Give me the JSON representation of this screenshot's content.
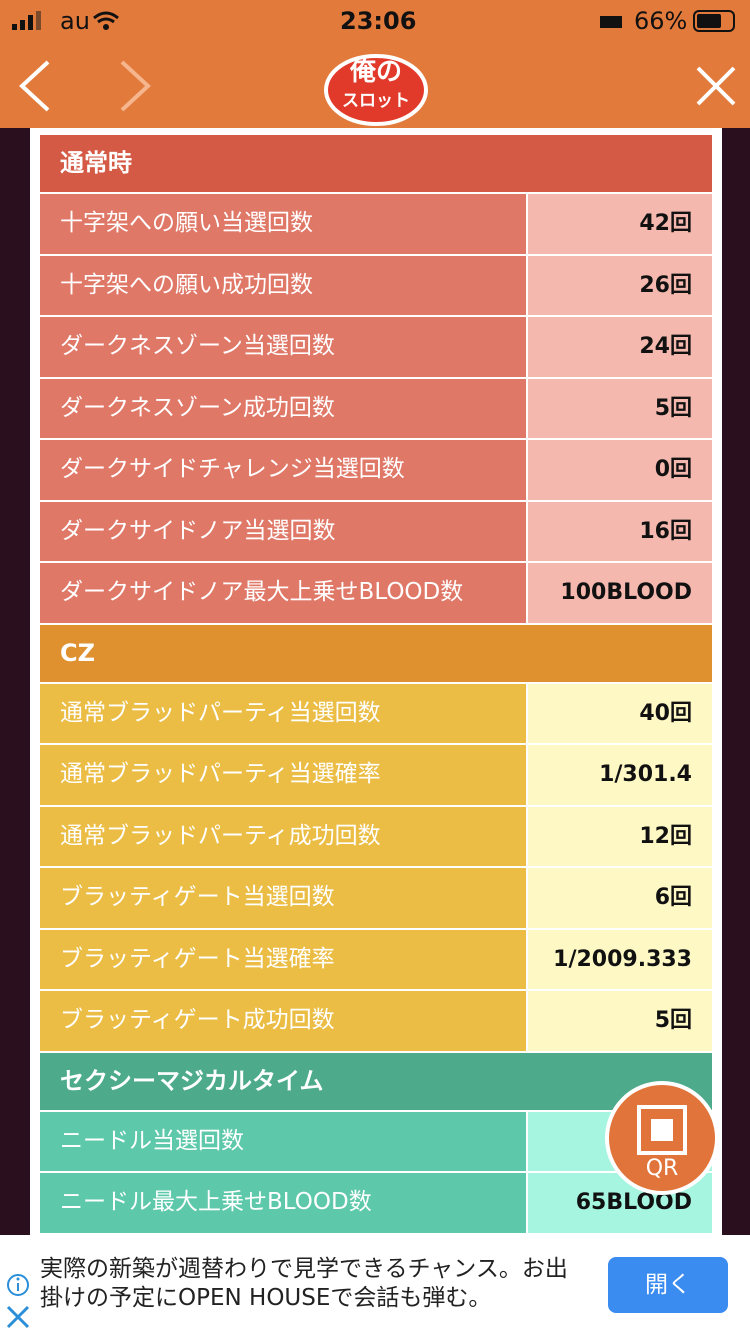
{
  "status_bar": {
    "carrier": "au",
    "time": "23:06",
    "battery": "66%"
  },
  "logo": {
    "top": "俺の",
    "bottom": "スロット"
  },
  "sections": [
    {
      "title": "通常時",
      "rows": [
        [
          "十字架への願い当選回数",
          "42回"
        ],
        [
          "十字架への願い成功回数",
          "26回"
        ],
        [
          "ダークネスゾーン当選回数",
          "24回"
        ],
        [
          "ダークネスゾーン成功回数",
          "5回"
        ],
        [
          "ダークサイドチャレンジ当選回数",
          "0回"
        ],
        [
          "ダークサイドノア当選回数",
          "16回"
        ],
        [
          "ダークサイドノア最大上乗せBLOOD数",
          "100BLOOD"
        ]
      ]
    },
    {
      "title": "CZ",
      "rows": [
        [
          "通常ブラッドパーティ当選回数",
          "40回"
        ],
        [
          "通常ブラッドパーティ当選確率",
          "1/301.4"
        ],
        [
          "通常ブラッドパーティ成功回数",
          "12回"
        ],
        [
          "ブラッティゲート当選回数",
          "6回"
        ],
        [
          "ブラッティゲート当選確率",
          "1/2009.333"
        ],
        [
          "ブラッティゲート成功回数",
          "5回"
        ]
      ]
    },
    {
      "title": "セクシーマジカルタイム",
      "rows": [
        [
          "ニードル当選回数"
        ],
        [
          "ニードル最大上乗せBLOOD数",
          "65BLOOD"
        ]
      ]
    }
  ],
  "qr_button": "QR",
  "ad": {
    "text": "実際の新築が週替わりで見学できるチャンス。お出掛けの予定にOPEN HOUSEで会話も弾む。",
    "button": "開く"
  }
}
